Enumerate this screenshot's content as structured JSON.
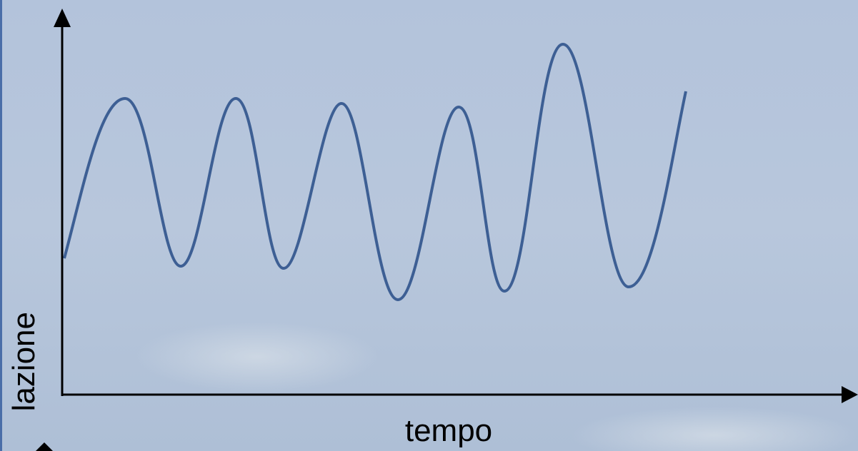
{
  "axes": {
    "x_label": "tempo",
    "y_label": "lazione"
  }
}
